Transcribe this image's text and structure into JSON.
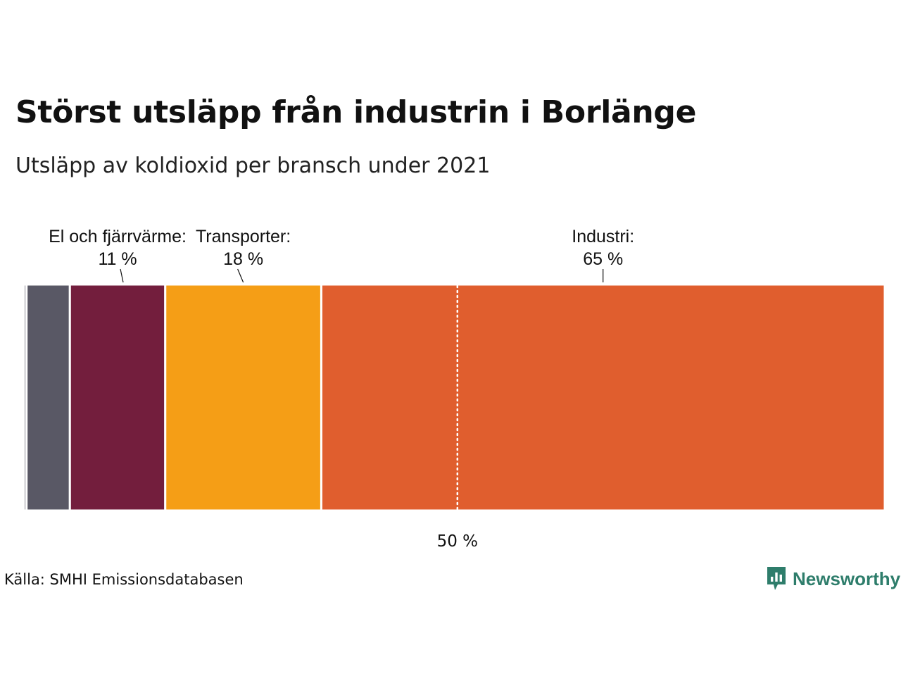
{
  "header": {
    "title": "Störst utsläpp från industrin i Borlänge",
    "subtitle": "Utsläpp av koldioxid per bransch under 2021"
  },
  "footer": {
    "source": "Källa: SMHI Emissionsdatabasen",
    "brand": "Newsworthy",
    "brand_color": "#2e7d6b",
    "brand_icon": "bar-chart-speech-bubble-icon"
  },
  "chart_data": {
    "type": "bar",
    "orientation": "horizontal-stacked-100",
    "unit": "%",
    "segments": [
      {
        "label": "",
        "value": 0.3,
        "color": "#3d3a4a",
        "labeled": false
      },
      {
        "label": "",
        "value": 5,
        "color": "#595865",
        "labeled": false
      },
      {
        "label": "El och fjärrvärme:",
        "value_label": "11 %",
        "value": 11,
        "color": "#731e3d",
        "labeled": true
      },
      {
        "label": "Transporter:",
        "value_label": "18 %",
        "value": 18,
        "color": "#f59e16",
        "labeled": true
      },
      {
        "label": "Industri:",
        "value_label": "65 %",
        "value": 65,
        "color": "#e05e2e",
        "labeled": true
      }
    ],
    "reference_line": {
      "value": 50,
      "label": "50 %"
    },
    "xlim": [
      0,
      100
    ],
    "grid": false,
    "legend": "none"
  }
}
